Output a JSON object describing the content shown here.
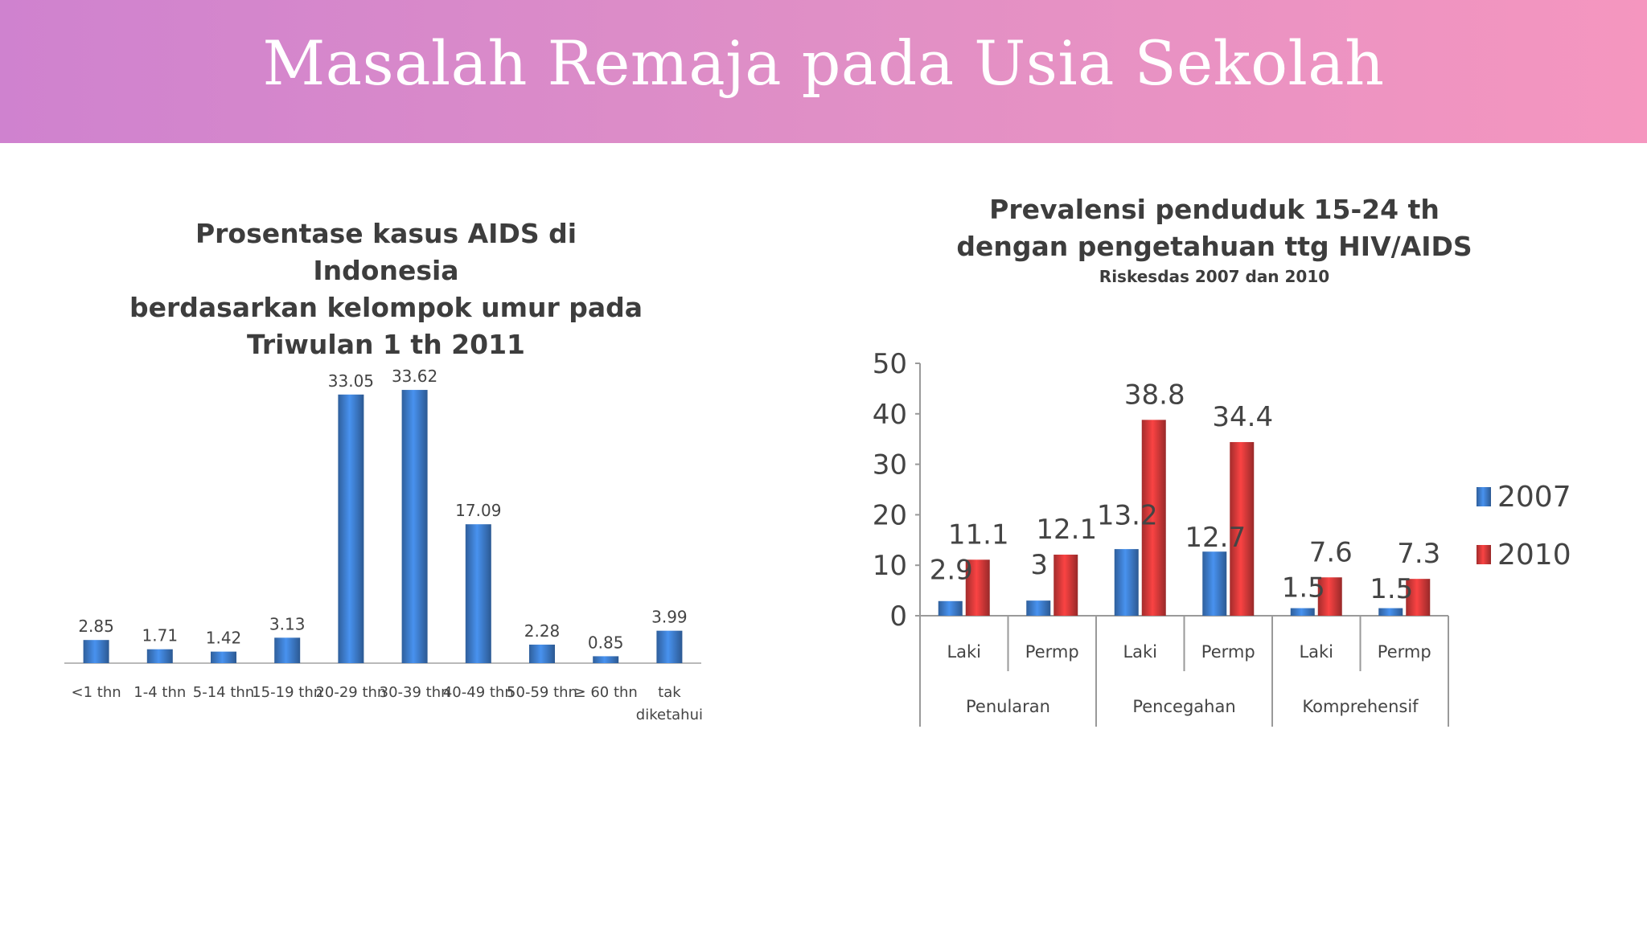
{
  "slide": {
    "title": "Masalah Remaja pada Usia Sekolah"
  },
  "chart_data": [
    {
      "type": "bar",
      "title": "Prosentase kasus AIDS di Indonesia berdasarkan kelompok umur pada Triwulan 1 th 2011",
      "title_lines": [
        "Prosentase kasus AIDS di Indonesia",
        "berdasarkan kelompok umur pada",
        "Triwulan 1 th 2011"
      ],
      "categories": [
        "<1 thn",
        "1-4 thn",
        "5-14 thn",
        "15-19 thn",
        "20-29 thn",
        "30-39 thn",
        "40-49 thn",
        "50-59 thn",
        "≥ 60 thn",
        "tak diketahui"
      ],
      "category_lines": [
        [
          "<1 thn"
        ],
        [
          "1-4 thn"
        ],
        [
          "5-14 thn"
        ],
        [
          "15-19 thn"
        ],
        [
          "20-29 thn"
        ],
        [
          "30-39 thn"
        ],
        [
          "40-49 thn"
        ],
        [
          "50-59 thn"
        ],
        [
          "≥ 60 thn"
        ],
        [
          "tak",
          "diketahui"
        ]
      ],
      "values": [
        2.85,
        1.71,
        1.42,
        3.13,
        33.05,
        33.62,
        17.09,
        2.28,
        0.85,
        3.99
      ],
      "labels": [
        "2.85",
        "1.71",
        "1.42",
        "3.13",
        "33.05",
        "33.62",
        "17.09",
        "2.28",
        "0.85",
        "3.99"
      ],
      "ylim": [
        0,
        36
      ],
      "color": "#3f7fd0",
      "grid": false,
      "legend": "none"
    },
    {
      "type": "bar",
      "title": "Prevalensi penduduk 15-24 th dengan pengetahuan ttg HIV/AIDS",
      "title_lines": [
        "Prevalensi penduduk 15-24 th",
        "dengan pengetahuan ttg HIV/AIDS"
      ],
      "subtitle": "Riskesdas 2007 dan 2010",
      "groups": [
        "Penularan",
        "Pencegahan",
        "Komprehensif"
      ],
      "categories": [
        "Laki",
        "Permp",
        "Laki",
        "Permp",
        "Laki",
        "Permp"
      ],
      "series": [
        {
          "name": "2007",
          "color": "#3f7fd0",
          "values": [
            2.9,
            3,
            13.2,
            12.7,
            1.5,
            1.5
          ],
          "labels": [
            "2.9",
            "3",
            "13.2",
            "12.7",
            "1.5",
            "1.5"
          ]
        },
        {
          "name": "2010",
          "color": "#d93a3a",
          "values": [
            11.1,
            12.1,
            38.8,
            34.4,
            7.6,
            7.3
          ],
          "labels": [
            "11.1",
            "12.1",
            "38.8",
            "34.4",
            "7.6",
            "7.3"
          ]
        }
      ],
      "yticks": [
        "0",
        "10",
        "20",
        "30",
        "40",
        "50"
      ],
      "ylim": [
        0,
        50
      ],
      "grid": false,
      "legend": "right"
    }
  ]
}
